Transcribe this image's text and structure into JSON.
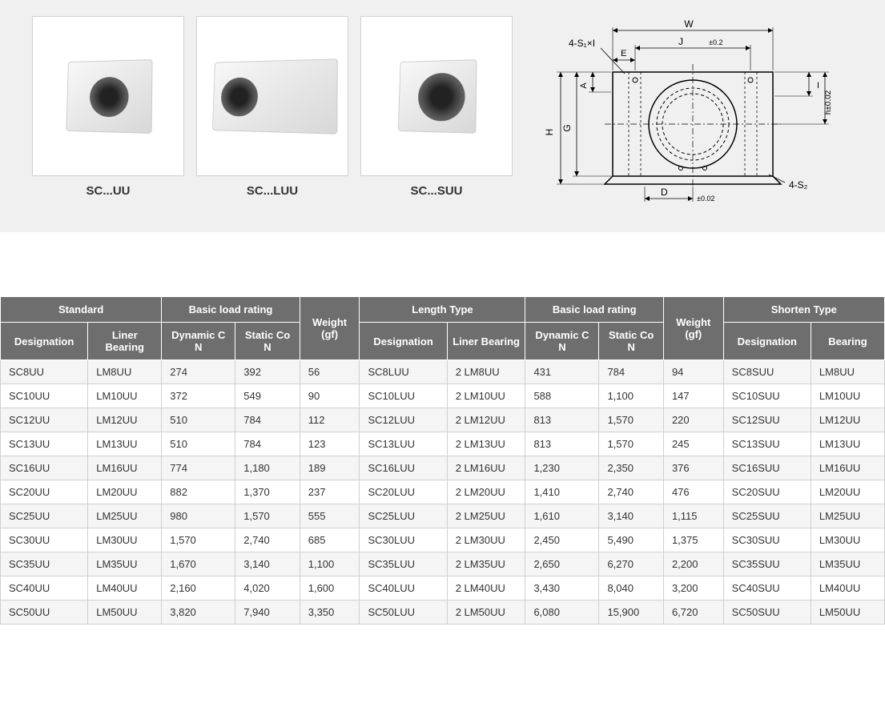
{
  "products": {
    "items": [
      {
        "label": "SC...UU"
      },
      {
        "label": "SC...LUU"
      },
      {
        "label": "SC...SUU"
      }
    ]
  },
  "diagram": {
    "labels": {
      "top_left": "4-S₁×I",
      "top_e": "E",
      "top_j": "J",
      "top_tol": "±0.2",
      "top_w": "W",
      "left_a": "A",
      "left_g": "G",
      "left_h": "H",
      "right_i": "I",
      "right_h": "h±0.02",
      "bottom_right": "4-S₂",
      "bottom_d": "D",
      "bottom_tol": "±0.02"
    }
  },
  "table": {
    "header_groups": {
      "standard": "Standard",
      "basic_load_1": "Basic load rating",
      "weight_1": "Weight (gf)",
      "length_type": "Length Type",
      "basic_load_2": "Basic load rating",
      "weight_2": "Weight (gf)",
      "shorten_type": "Shorten Type"
    },
    "columns": {
      "designation_1": "Designation",
      "liner_bearing_1": "Liner Bearing",
      "dynamic_1": "Dynamic C N",
      "static_1": "Static Co N",
      "designation_2": "Designation",
      "liner_bearing_2": "Liner Bearing",
      "dynamic_2": "Dynamic C N",
      "static_2": "Static Co N",
      "designation_3": "Designation",
      "bearing_3": "Bearing"
    },
    "rows": [
      [
        "SC8UU",
        "LM8UU",
        "274",
        "392",
        "56",
        "SC8LUU",
        "2 LM8UU",
        "431",
        "784",
        "94",
        "SC8SUU",
        "LM8UU"
      ],
      [
        "SC10UU",
        "LM10UU",
        "372",
        "549",
        "90",
        "SC10LUU",
        "2 LM10UU",
        "588",
        "1,100",
        "147",
        "SC10SUU",
        "LM10UU"
      ],
      [
        "SC12UU",
        "LM12UU",
        "510",
        "784",
        "112",
        "SC12LUU",
        "2 LM12UU",
        "813",
        "1,570",
        "220",
        "SC12SUU",
        "LM12UU"
      ],
      [
        "SC13UU",
        "LM13UU",
        "510",
        "784",
        "123",
        "SC13LUU",
        "2 LM13UU",
        "813",
        "1,570",
        "245",
        "SC13SUU",
        "LM13UU"
      ],
      [
        "SC16UU",
        "LM16UU",
        "774",
        "1,180",
        "189",
        "SC16LUU",
        "2 LM16UU",
        "1,230",
        "2,350",
        "376",
        "SC16SUU",
        "LM16UU"
      ],
      [
        "SC20UU",
        "LM20UU",
        "882",
        "1,370",
        "237",
        "SC20LUU",
        "2 LM20UU",
        "1,410",
        "2,740",
        "476",
        "SC20SUU",
        "LM20UU"
      ],
      [
        "SC25UU",
        "LM25UU",
        "980",
        "1,570",
        "555",
        "SC25LUU",
        "2 LM25UU",
        "1,610",
        "3,140",
        "1,115",
        "SC25SUU",
        "LM25UU"
      ],
      [
        "SC30UU",
        "LM30UU",
        "1,570",
        "2,740",
        "685",
        "SC30LUU",
        "2 LM30UU",
        "2,450",
        "5,490",
        "1,375",
        "SC30SUU",
        "LM30UU"
      ],
      [
        "SC35UU",
        "LM35UU",
        "1,670",
        "3,140",
        "1,100",
        "SC35LUU",
        "2 LM35UU",
        "2,650",
        "6,270",
        "2,200",
        "SC35SUU",
        "LM35UU"
      ],
      [
        "SC40UU",
        "LM40UU",
        "2,160",
        "4,020",
        "1,600",
        "SC40LUU",
        "2 LM40UU",
        "3,430",
        "8,040",
        "3,200",
        "SC40SUU",
        "LM40UU"
      ],
      [
        "SC50UU",
        "LM50UU",
        "3,820",
        "7,940",
        "3,350",
        "SC50LUU",
        "2 LM50UU",
        "6,080",
        "15,900",
        "6,720",
        "SC50SUU",
        "LM50UU"
      ]
    ],
    "col_widths": [
      "9.5%",
      "8%",
      "8%",
      "7%",
      "6.5%",
      "9.5%",
      "8.5%",
      "8%",
      "7%",
      "6.5%",
      "9.5%",
      "8%"
    ]
  },
  "styling": {
    "header_bg": "#6e6e6e",
    "header_fg": "#ffffff",
    "row_odd_bg": "#f5f5f5",
    "row_even_bg": "#ffffff",
    "cell_border": "#d0d0d0",
    "body_font_size": 13,
    "top_bg": "#f0f0f0"
  }
}
